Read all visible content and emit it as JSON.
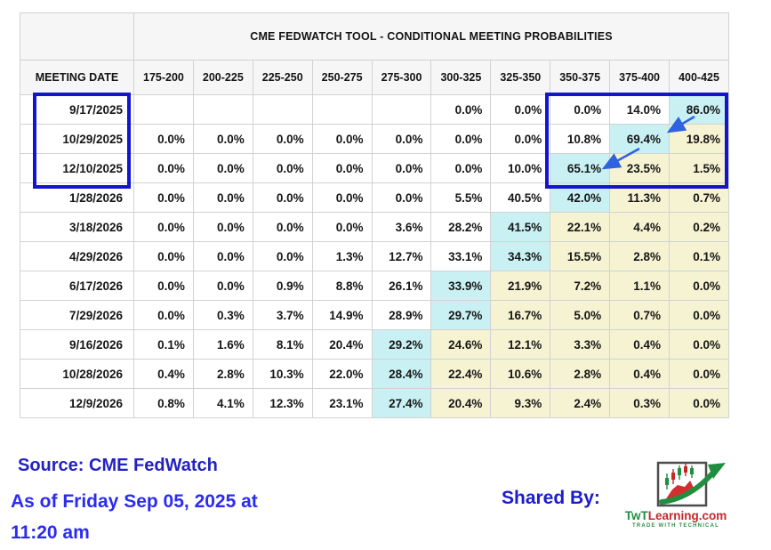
{
  "chart_data": {
    "type": "table",
    "title": "CME FEDWATCH TOOL - CONDITIONAL MEETING PROBABILITIES",
    "row_header": "MEETING DATE",
    "columns": [
      "175-200",
      "200-225",
      "225-250",
      "250-275",
      "275-300",
      "300-325",
      "325-350",
      "350-375",
      "375-400",
      "400-425"
    ],
    "value_unit": "%",
    "rows": [
      {
        "date": "9/17/2025",
        "values": [
          null,
          null,
          null,
          null,
          null,
          0.0,
          0.0,
          0.0,
          14.0,
          86.0
        ],
        "hl": "nnnnnnnnnc"
      },
      {
        "date": "10/29/2025",
        "values": [
          0.0,
          0.0,
          0.0,
          0.0,
          0.0,
          0.0,
          0.0,
          10.8,
          69.4,
          19.8
        ],
        "hl": "nnnnnnnncy"
      },
      {
        "date": "12/10/2025",
        "values": [
          0.0,
          0.0,
          0.0,
          0.0,
          0.0,
          0.0,
          10.0,
          65.1,
          23.5,
          1.5
        ],
        "hl": "nnnnnnncyy"
      },
      {
        "date": "1/28/2026",
        "values": [
          0.0,
          0.0,
          0.0,
          0.0,
          0.0,
          5.5,
          40.5,
          42.0,
          11.3,
          0.7
        ],
        "hl": "nnnnnnncyy"
      },
      {
        "date": "3/18/2026",
        "values": [
          0.0,
          0.0,
          0.0,
          0.0,
          3.6,
          28.2,
          41.5,
          22.1,
          4.4,
          0.2
        ],
        "hl": "nnnnnncyyy"
      },
      {
        "date": "4/29/2026",
        "values": [
          0.0,
          0.0,
          0.0,
          1.3,
          12.7,
          33.1,
          34.3,
          15.5,
          2.8,
          0.1
        ],
        "hl": "nnnnnncyyy"
      },
      {
        "date": "6/17/2026",
        "values": [
          0.0,
          0.0,
          0.9,
          8.8,
          26.1,
          33.9,
          21.9,
          7.2,
          1.1,
          0.0
        ],
        "hl": "nnnnncyyyy"
      },
      {
        "date": "7/29/2026",
        "values": [
          0.0,
          0.3,
          3.7,
          14.9,
          28.9,
          29.7,
          16.7,
          5.0,
          0.7,
          0.0
        ],
        "hl": "nnnnncyyyy"
      },
      {
        "date": "9/16/2026",
        "values": [
          0.1,
          1.6,
          8.1,
          20.4,
          29.2,
          24.6,
          12.1,
          3.3,
          0.4,
          0.0
        ],
        "hl": "nnnncyyyyy"
      },
      {
        "date": "10/28/2026",
        "values": [
          0.4,
          2.8,
          10.3,
          22.0,
          28.4,
          22.4,
          10.6,
          2.8,
          0.4,
          0.0
        ],
        "hl": "nnnncyyyyy"
      },
      {
        "date": "12/9/2026",
        "values": [
          0.8,
          4.1,
          12.3,
          23.1,
          27.4,
          20.4,
          9.3,
          2.4,
          0.3,
          0.0
        ],
        "hl": "nnnncyyyyy"
      }
    ],
    "highlight_legend": {
      "c": "cyan highlight (highest probability in row)",
      "y": "pale-yellow highlight",
      "n": "no highlight"
    },
    "annotations": {
      "boxed_dates": [
        "9/17/2025",
        "10/29/2025",
        "12/10/2025"
      ],
      "boxed_columns": [
        "350-375",
        "375-400",
        "400-425"
      ],
      "arrows": [
        {
          "from": "86.0% (9/17/2025, 400-425)",
          "to": "69.4% (10/29/2025, 375-400)"
        },
        {
          "from": "69.4% (10/29/2025, 375-400)",
          "to": "65.1% (12/10/2025, 350-375)"
        }
      ]
    }
  },
  "footer": {
    "source": "Source: CME FedWatch",
    "as_of_line1": "As of Friday Sep 05, 2025 at",
    "as_of_line2": "11:20 am",
    "shared_by": "Shared By:"
  },
  "logo": {
    "brand_green": "TwT",
    "brand_red": "Learning.com",
    "tagline": "TRADE WITH TECHNICAL"
  },
  "colors": {
    "highlight_cyan": "#c9f1f4",
    "highlight_yellow": "#f6f3d2",
    "annotation_rect_blue": "#1414cc",
    "arrow_blue": "#2f62e0",
    "source_text_blue": "#2222c2",
    "asof_text_blue": "#2b2bf2",
    "shared_by_blue": "#1c1ccd"
  }
}
